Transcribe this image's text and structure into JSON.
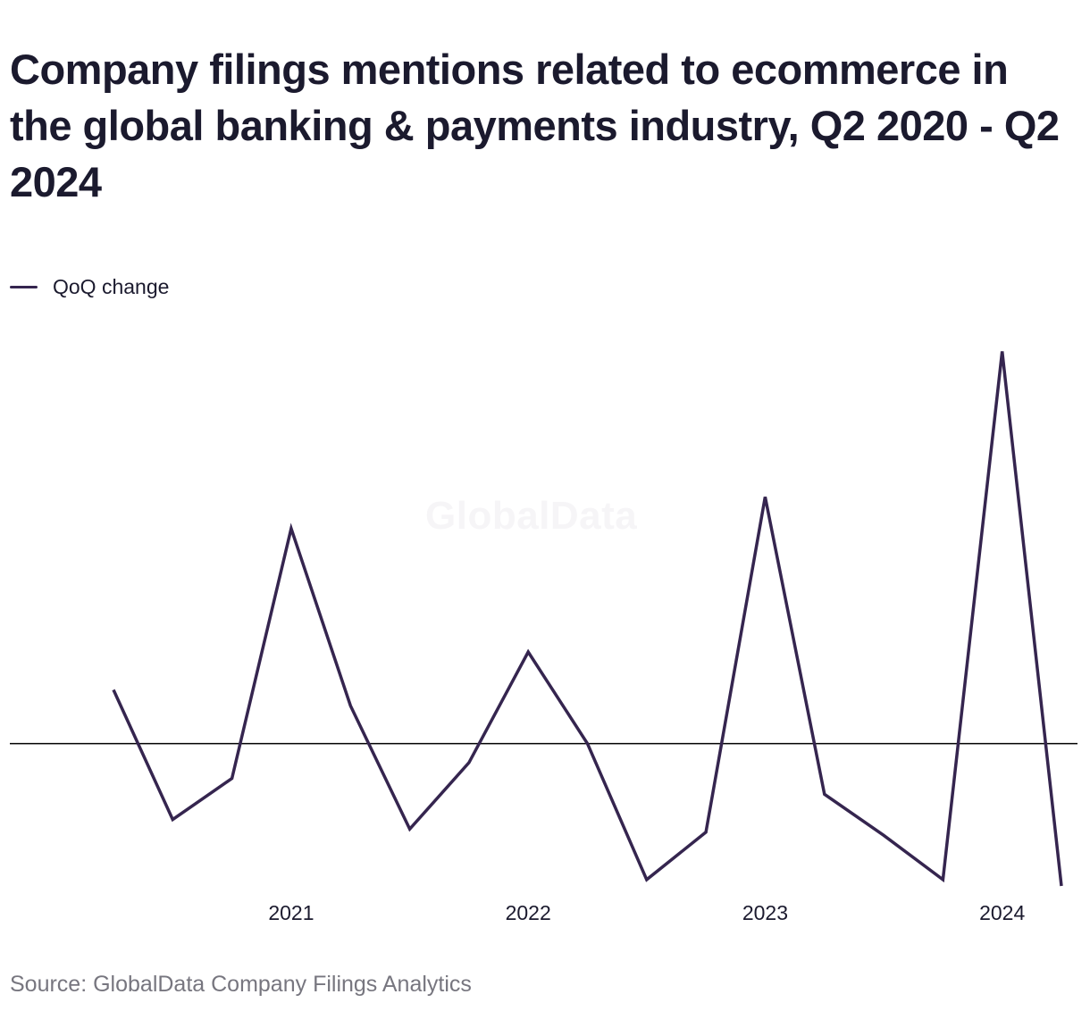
{
  "title": "Company filings mentions related to ecommerce in the global banking & payments industry, Q2 2020 - Q2 2024",
  "watermark": "GlobalData",
  "source": "Source: GlobalData Company Filings Analytics",
  "colors": {
    "line": "#35254f",
    "zero_line": "#000000",
    "text": "#1b1a2e",
    "source_text": "#77767f",
    "watermark": "#f6f5f7"
  },
  "chart_data": {
    "type": "line",
    "title": "Company filings mentions related to ecommerce in the global banking & payments industry, Q2 2020 - Q2 2024",
    "xlabel": "",
    "ylabel": "",
    "grid": false,
    "legend": "top-left",
    "x": [
      "Q2 2020",
      "Q3 2020",
      "Q4 2020",
      "Q1 2021",
      "Q2 2021",
      "Q3 2021",
      "Q4 2021",
      "Q1 2022",
      "Q2 2022",
      "Q3 2022",
      "Q4 2022",
      "Q1 2023",
      "Q2 2023",
      "Q3 2023",
      "Q4 2023",
      "Q1 2024",
      "Q2 2024"
    ],
    "x_ticks": [
      {
        "label": "2021",
        "at": "Q1 2021"
      },
      {
        "label": "2022",
        "at": "Q1 2022"
      },
      {
        "label": "2023",
        "at": "Q1 2023"
      },
      {
        "label": "2024",
        "at": "Q1 2024"
      }
    ],
    "ylim": [
      -0.45,
      1.25
    ],
    "series": [
      {
        "name": "QoQ change",
        "values": [
          0.17,
          -0.24,
          -0.11,
          0.68,
          0.12,
          -0.27,
          -0.06,
          0.29,
          0.0,
          -0.43,
          -0.28,
          0.78,
          -0.16,
          -0.29,
          -0.43,
          1.24,
          -0.45
        ]
      }
    ]
  }
}
